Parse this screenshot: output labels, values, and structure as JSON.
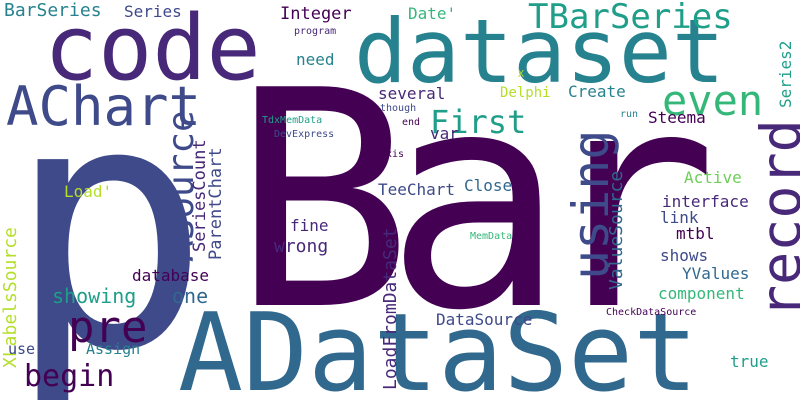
{
  "palette": {
    "dark_purple": "#440154",
    "indigo": "#482878",
    "blue": "#3e4a89",
    "teal_blue": "#31688e",
    "teal": "#26828e",
    "green_teal": "#1f9e89",
    "green": "#35b779",
    "light_green": "#6ece58",
    "yellow_green": "#b5de2b",
    "yellow": "#fde725"
  },
  "words": [
    "Bar",
    "p",
    "ADataSet",
    "dataset",
    "code",
    "AChart",
    "record",
    "using",
    "even",
    "TBarSeries",
    "pre",
    "First",
    "begin",
    "ASource",
    "showing",
    "one",
    "XLabelsSource",
    "BarSeries",
    "Series",
    "Integer",
    "Date'",
    "program",
    "need",
    "several",
    "Delphi",
    "Create",
    "Series2",
    "though",
    "end",
    "run",
    "Steema",
    "TdxMemData",
    "DevExpress",
    "var",
    "axis",
    "TeeChart",
    "Close",
    "Active",
    "ValueSource",
    "interface",
    "link",
    "mtbl",
    "fine",
    "wrong",
    "SeriesCount",
    "ParentChart",
    "database",
    "LoadFromDataSet",
    "shows",
    "YValues",
    "component",
    "DataSource",
    "CheckDataSource",
    "MemData",
    "Load'",
    "user",
    "Assign",
    "true",
    "X"
  ]
}
